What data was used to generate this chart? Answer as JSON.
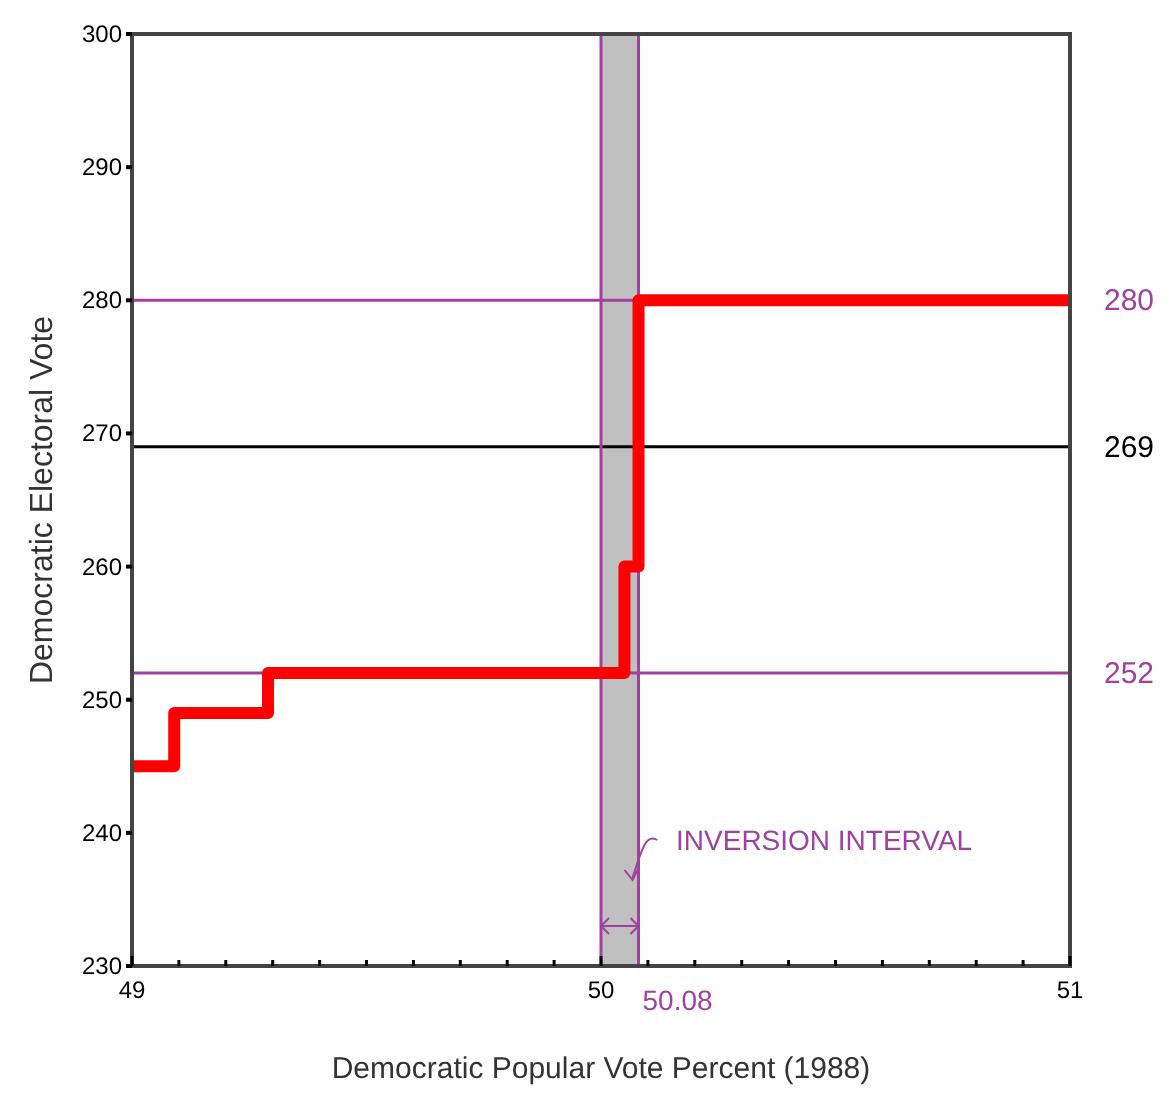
{
  "chart_data": {
    "type": "step",
    "xlabel": "Democratic Popular Vote Percent (1988)",
    "ylabel": "Democratic Electoral Vote",
    "series": [
      {
        "color": "#ff0000",
        "x": [
          49,
          49.09,
          49.29,
          50.05,
          50.08,
          51
        ],
        "values": [
          245,
          249,
          252,
          260,
          280,
          280
        ]
      }
    ],
    "xlim": [
      49,
      51
    ],
    "ylim": [
      230,
      300
    ],
    "xticks": [
      49,
      {
        "value": 49.1,
        "label": null
      },
      {
        "value": 49.2,
        "label": null
      },
      {
        "value": 49.3,
        "label": null
      },
      {
        "value": 49.4,
        "label": null
      },
      {
        "value": 49.5,
        "label": null
      },
      {
        "value": 49.6,
        "label": null
      },
      {
        "value": 49.7,
        "label": null
      },
      {
        "value": 49.8,
        "label": null
      },
      {
        "value": 49.9,
        "label": null
      },
      50,
      {
        "value": 50.1,
        "label": null
      },
      {
        "value": 50.2,
        "label": null
      },
      {
        "value": 50.3,
        "label": null
      },
      {
        "value": 50.4,
        "label": null
      },
      {
        "value": 50.5,
        "label": null
      },
      {
        "value": 50.6,
        "label": null
      },
      {
        "value": 50.7,
        "label": null
      },
      {
        "value": 50.8,
        "label": null
      },
      {
        "value": 50.9,
        "label": null
      },
      51
    ],
    "yticks": [
      230,
      240,
      250,
      260,
      270,
      280,
      290,
      300
    ],
    "bands": [
      {
        "axis": "x",
        "from": 50,
        "to": 50.08,
        "color": "#c0c0c0"
      }
    ],
    "ref_lines": [
      {
        "axis": "y",
        "value": 280,
        "label": "280",
        "color": "#a040a0"
      },
      {
        "axis": "y",
        "value": 269,
        "label": "269",
        "color": "#000000"
      },
      {
        "axis": "y",
        "value": 252,
        "label": "252",
        "color": "#a040a0"
      },
      {
        "axis": "x",
        "value": 50,
        "color": "#a040a0"
      },
      {
        "axis": "x",
        "value": 50.08,
        "label": "50.08",
        "color": "#a040a0"
      }
    ],
    "annotations": [
      "INVERSION INTERVAL"
    ]
  }
}
